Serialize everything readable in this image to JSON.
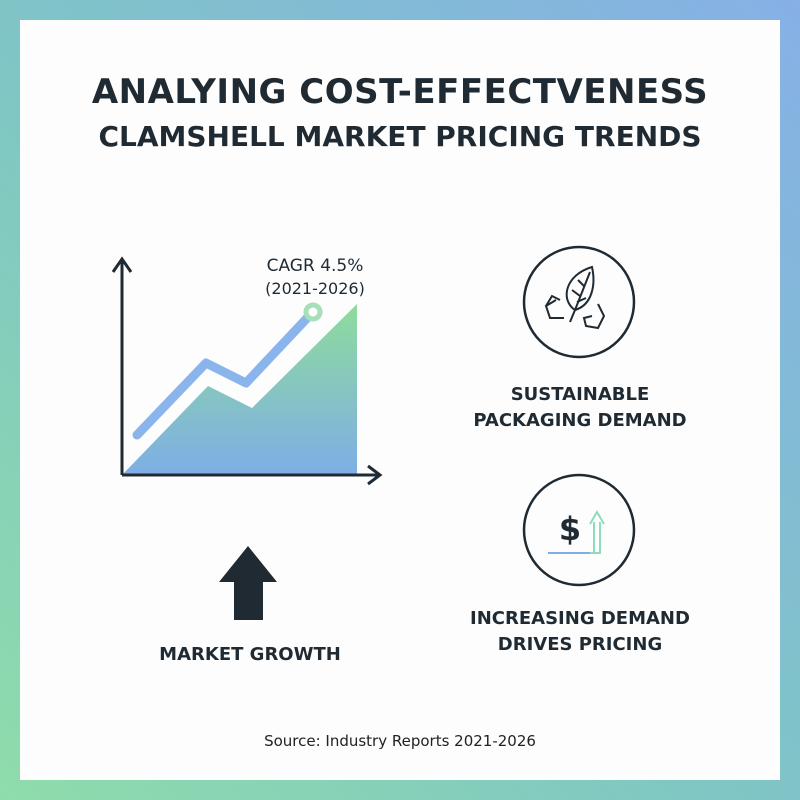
{
  "title": {
    "line1": "ANALYING COST-EFFECTVENESS",
    "line2": "CLAMSHELL MARKET PRICING TRENDS"
  },
  "chart": {
    "annotation_value": "CAGR 4.5%",
    "annotation_period": "(2021-2026)",
    "colors": {
      "line": "#8ab4ec",
      "area_top": "#8edc9c",
      "area_bottom": "#7eaee6",
      "axis": "#1f2a33"
    }
  },
  "market_growth": {
    "label": "MARKET GROWTH",
    "icon": "up-arrow-icon"
  },
  "features": [
    {
      "icon": "leaf-recycle-icon",
      "label_line1": "SUSTAINABLE",
      "label_line2": "PACKAGING DEMAND"
    },
    {
      "icon": "dollar-up-arrow-icon",
      "label_line1": "INCREASING DEMAND",
      "label_line2": "DRIVES PRICING"
    }
  ],
  "source": "Source: Industry Reports 2021-2026"
}
